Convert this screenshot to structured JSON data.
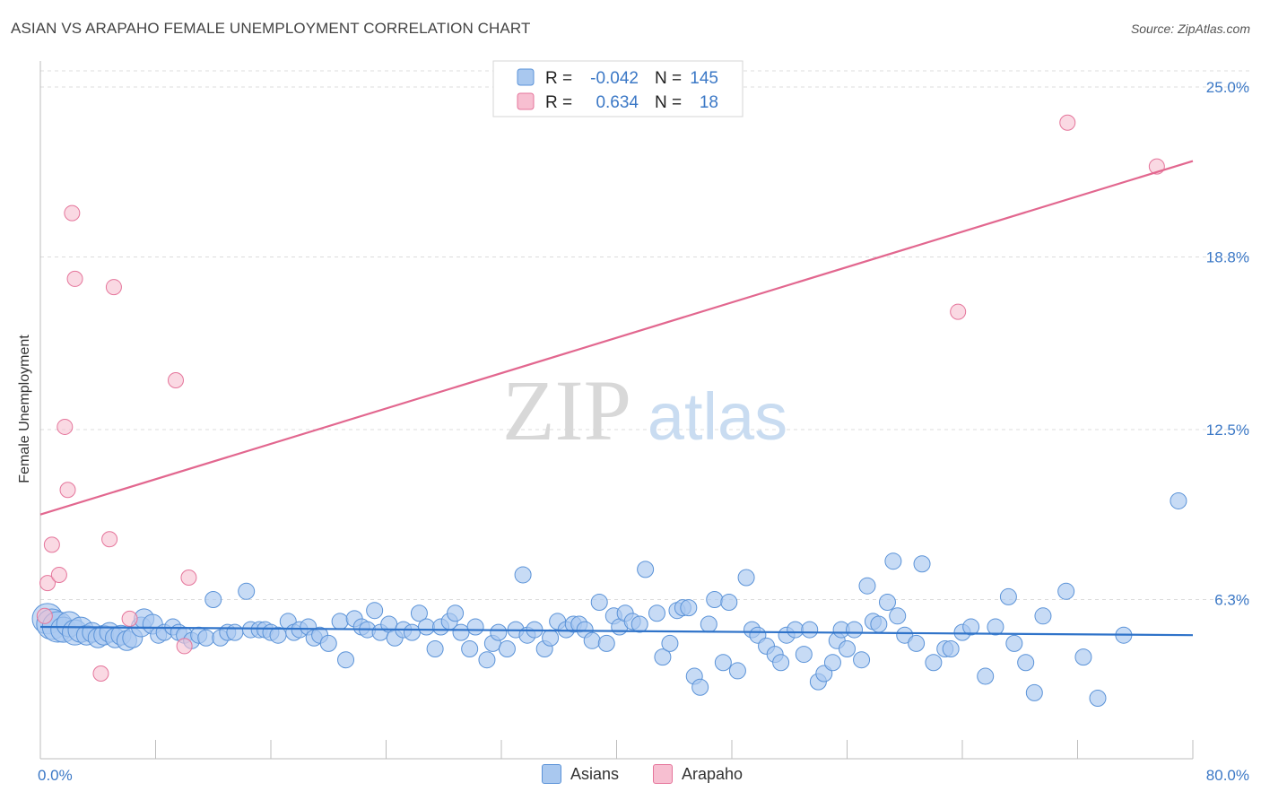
{
  "title": "ASIAN VS ARAPAHO FEMALE UNEMPLOYMENT CORRELATION CHART",
  "source": "Source: ZipAtlas.com",
  "watermark": {
    "zip": "ZIP",
    "atlas": "atlas"
  },
  "colors": {
    "asian": "#5b93d8",
    "asian_fill": "#a9c8ef",
    "arapaho": "#e5759b",
    "arapaho_fill": "#f7bfd1",
    "tick": "#3b78c6"
  },
  "legend": {
    "rows": [
      {
        "r_label": "R =",
        "r_value": "-0.042",
        "n_label": "N =",
        "n_value": "145"
      },
      {
        "r_label": "R =",
        "r_value": "0.634",
        "n_label": "N =",
        "n_value": "18"
      }
    ]
  },
  "bottom_legend": [
    "Asians",
    "Arapaho"
  ],
  "chart_data": {
    "type": "scatter",
    "title": "ASIAN VS ARAPAHO FEMALE UNEMPLOYMENT CORRELATION CHART",
    "xlabel": "",
    "ylabel": "Female Unemployment",
    "xlim": [
      0,
      80
    ],
    "ylim": [
      0,
      25.6
    ],
    "x_tick_labels": [
      "0.0%",
      "80.0%"
    ],
    "y_ticks": [
      6.3,
      12.5,
      18.8,
      25.0
    ],
    "y_tick_labels": [
      "6.3%",
      "12.5%",
      "18.8%",
      "25.0%"
    ],
    "grid": "horizontal dashed",
    "legend_position": "top-center",
    "series": [
      {
        "name": "Asians",
        "r": -0.042,
        "n": 145,
        "trend": {
          "x": [
            0,
            80
          ],
          "y": [
            5.3,
            5.0
          ]
        },
        "points": [
          [
            0.5,
            5.6
          ],
          [
            0.8,
            5.4
          ],
          [
            1.2,
            5.3
          ],
          [
            1.6,
            5.2
          ],
          [
            2.0,
            5.4
          ],
          [
            2.4,
            5.1
          ],
          [
            2.8,
            5.2
          ],
          [
            3.2,
            5.0
          ],
          [
            3.6,
            5.1
          ],
          [
            4.0,
            4.9
          ],
          [
            4.4,
            5.0
          ],
          [
            4.8,
            5.1
          ],
          [
            5.2,
            4.9
          ],
          [
            5.6,
            5.0
          ],
          [
            6.0,
            4.8
          ],
          [
            6.4,
            4.9
          ],
          [
            7.0,
            5.3
          ],
          [
            7.2,
            5.6
          ],
          [
            7.8,
            5.4
          ],
          [
            8.2,
            5.0
          ],
          [
            8.6,
            5.1
          ],
          [
            9.2,
            5.3
          ],
          [
            9.6,
            5.1
          ],
          [
            10.0,
            5.0
          ],
          [
            10.5,
            4.8
          ],
          [
            11.0,
            5.0
          ],
          [
            11.5,
            4.9
          ],
          [
            12.0,
            6.3
          ],
          [
            12.5,
            4.9
          ],
          [
            13.0,
            5.1
          ],
          [
            13.5,
            5.1
          ],
          [
            14.3,
            6.6
          ],
          [
            14.6,
            5.2
          ],
          [
            15.2,
            5.2
          ],
          [
            15.6,
            5.2
          ],
          [
            16.0,
            5.1
          ],
          [
            16.5,
            5.0
          ],
          [
            17.2,
            5.5
          ],
          [
            17.6,
            5.1
          ],
          [
            18.0,
            5.2
          ],
          [
            18.6,
            5.3
          ],
          [
            19.0,
            4.9
          ],
          [
            19.4,
            5.0
          ],
          [
            20.0,
            4.7
          ],
          [
            20.8,
            5.5
          ],
          [
            21.2,
            4.1
          ],
          [
            21.8,
            5.6
          ],
          [
            22.3,
            5.3
          ],
          [
            22.7,
            5.2
          ],
          [
            23.2,
            5.9
          ],
          [
            23.6,
            5.1
          ],
          [
            24.2,
            5.4
          ],
          [
            24.6,
            4.9
          ],
          [
            25.2,
            5.2
          ],
          [
            25.8,
            5.1
          ],
          [
            26.3,
            5.8
          ],
          [
            26.8,
            5.3
          ],
          [
            27.4,
            4.5
          ],
          [
            27.8,
            5.3
          ],
          [
            28.4,
            5.5
          ],
          [
            28.8,
            5.8
          ],
          [
            29.2,
            5.1
          ],
          [
            29.8,
            4.5
          ],
          [
            30.2,
            5.3
          ],
          [
            31.0,
            4.1
          ],
          [
            31.4,
            4.7
          ],
          [
            31.8,
            5.1
          ],
          [
            32.4,
            4.5
          ],
          [
            33.0,
            5.2
          ],
          [
            33.5,
            7.2
          ],
          [
            33.8,
            5.0
          ],
          [
            34.3,
            5.2
          ],
          [
            35.0,
            4.5
          ],
          [
            35.4,
            4.9
          ],
          [
            35.9,
            5.5
          ],
          [
            36.5,
            5.2
          ],
          [
            37.0,
            5.4
          ],
          [
            37.4,
            5.4
          ],
          [
            37.8,
            5.2
          ],
          [
            38.3,
            4.8
          ],
          [
            38.8,
            6.2
          ],
          [
            39.3,
            4.7
          ],
          [
            39.8,
            5.7
          ],
          [
            40.2,
            5.3
          ],
          [
            40.6,
            5.8
          ],
          [
            41.1,
            5.5
          ],
          [
            41.6,
            5.4
          ],
          [
            42.0,
            7.4
          ],
          [
            42.8,
            5.8
          ],
          [
            43.2,
            4.2
          ],
          [
            43.7,
            4.7
          ],
          [
            44.2,
            5.9
          ],
          [
            44.6,
            6.0
          ],
          [
            45.0,
            6.0
          ],
          [
            45.4,
            3.5
          ],
          [
            45.8,
            3.1
          ],
          [
            46.4,
            5.4
          ],
          [
            46.8,
            6.3
          ],
          [
            47.4,
            4.0
          ],
          [
            47.8,
            6.2
          ],
          [
            48.4,
            3.7
          ],
          [
            49.0,
            7.1
          ],
          [
            49.4,
            5.2
          ],
          [
            49.8,
            5.0
          ],
          [
            50.4,
            4.6
          ],
          [
            51.0,
            4.3
          ],
          [
            51.4,
            4.0
          ],
          [
            51.8,
            5.0
          ],
          [
            52.4,
            5.2
          ],
          [
            53.0,
            4.3
          ],
          [
            53.4,
            5.2
          ],
          [
            54.0,
            3.3
          ],
          [
            54.4,
            3.6
          ],
          [
            55.0,
            4.0
          ],
          [
            55.3,
            4.8
          ],
          [
            55.6,
            5.2
          ],
          [
            56.0,
            4.5
          ],
          [
            56.5,
            5.2
          ],
          [
            57.0,
            4.1
          ],
          [
            57.4,
            6.8
          ],
          [
            57.8,
            5.5
          ],
          [
            58.2,
            5.4
          ],
          [
            58.8,
            6.2
          ],
          [
            59.2,
            7.7
          ],
          [
            59.5,
            5.7
          ],
          [
            60.0,
            5.0
          ],
          [
            60.8,
            4.7
          ],
          [
            61.2,
            7.6
          ],
          [
            62.0,
            4.0
          ],
          [
            62.8,
            4.5
          ],
          [
            63.2,
            4.5
          ],
          [
            64.0,
            5.1
          ],
          [
            64.6,
            5.3
          ],
          [
            65.6,
            3.5
          ],
          [
            66.3,
            5.3
          ],
          [
            67.2,
            6.4
          ],
          [
            67.6,
            4.7
          ],
          [
            68.4,
            4.0
          ],
          [
            69.0,
            2.9
          ],
          [
            69.6,
            5.7
          ],
          [
            71.2,
            6.6
          ],
          [
            72.4,
            4.2
          ],
          [
            73.4,
            2.7
          ],
          [
            75.2,
            5.0
          ],
          [
            79.0,
            9.9
          ]
        ]
      },
      {
        "name": "Arapaho",
        "r": 0.634,
        "n": 18,
        "trend": {
          "x": [
            0,
            80
          ],
          "y": [
            9.4,
            22.3
          ]
        },
        "points": [
          [
            0.3,
            5.7
          ],
          [
            0.5,
            6.9
          ],
          [
            0.8,
            8.3
          ],
          [
            1.3,
            7.2
          ],
          [
            1.7,
            12.6
          ],
          [
            1.9,
            10.3
          ],
          [
            2.2,
            20.4
          ],
          [
            2.4,
            18.0
          ],
          [
            4.2,
            3.6
          ],
          [
            4.8,
            8.5
          ],
          [
            5.1,
            17.7
          ],
          [
            6.2,
            5.6
          ],
          [
            9.4,
            14.3
          ],
          [
            10.0,
            4.6
          ],
          [
            10.3,
            7.1
          ],
          [
            63.7,
            16.8
          ],
          [
            71.3,
            23.7
          ],
          [
            77.5,
            22.1
          ]
        ]
      }
    ]
  }
}
